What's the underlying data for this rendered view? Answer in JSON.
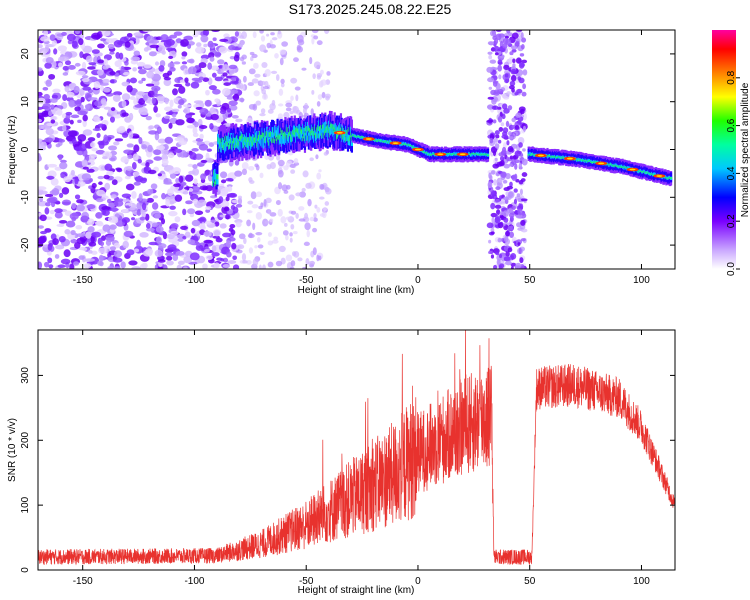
{
  "title": "S173.2025.245.08.22.E25",
  "chart_data": [
    {
      "type": "heatmap",
      "name": "spectrogram",
      "xlabel": "Height of straight line (km)",
      "ylabel": "Frequency (Hz)",
      "xlim": [
        -170,
        115
      ],
      "ylim": [
        -25,
        25
      ],
      "xticks": [
        -150,
        -100,
        -50,
        0,
        50,
        100
      ],
      "yticks": [
        -20,
        -10,
        0,
        10,
        20
      ],
      "gaps": [
        [
          -80,
          -40
        ],
        [
          32,
          48
        ]
      ],
      "colorbar": {
        "label": "Normalized spectral amplitude",
        "range": [
          0,
          1
        ],
        "ticks": [
          0.0,
          0.2,
          0.4,
          0.6,
          0.8
        ],
        "tick_labels": [
          "0.0",
          "0.2",
          "0.4",
          "0.6",
          "0.8"
        ]
      },
      "ridge": [
        {
          "x": -90,
          "y": 1
        },
        {
          "x": -60,
          "y": 3
        },
        {
          "x": -40,
          "y": 4
        },
        {
          "x": -30,
          "y": 3
        },
        {
          "x": -20,
          "y": 2
        },
        {
          "x": -5,
          "y": 1
        },
        {
          "x": 5,
          "y": -1
        },
        {
          "x": 30,
          "y": -1
        },
        {
          "x": 50,
          "y": -1
        },
        {
          "x": 70,
          "y": -2
        },
        {
          "x": 90,
          "y": -3.5
        },
        {
          "x": 112,
          "y": -6
        }
      ]
    },
    {
      "type": "line",
      "name": "snr",
      "xlabel": "Height of straight line (km)",
      "ylabel": "SNR (10 * v/v)",
      "xlim": [
        -170,
        115
      ],
      "ylim": [
        0,
        370
      ],
      "xticks": [
        -150,
        -100,
        -50,
        0,
        50,
        100
      ],
      "yticks": [
        0,
        100,
        200,
        300
      ],
      "color": "#e8322e",
      "envelope": [
        {
          "x": -170,
          "y": 20
        },
        {
          "x": -90,
          "y": 22
        },
        {
          "x": -70,
          "y": 40
        },
        {
          "x": -50,
          "y": 70
        },
        {
          "x": -30,
          "y": 110
        },
        {
          "x": -10,
          "y": 150
        },
        {
          "x": 0,
          "y": 180
        },
        {
          "x": 10,
          "y": 200
        },
        {
          "x": 20,
          "y": 220
        },
        {
          "x": 33,
          "y": 240
        },
        {
          "x": 34,
          "y": 20
        },
        {
          "x": 51,
          "y": 20
        },
        {
          "x": 53,
          "y": 280
        },
        {
          "x": 70,
          "y": 285
        },
        {
          "x": 90,
          "y": 265
        },
        {
          "x": 100,
          "y": 220
        },
        {
          "x": 115,
          "y": 100
        }
      ]
    }
  ]
}
